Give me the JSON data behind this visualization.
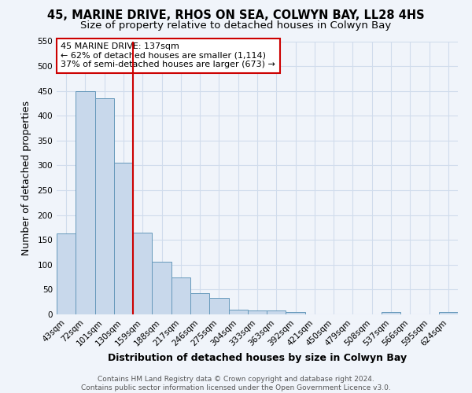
{
  "title": "45, MARINE DRIVE, RHOS ON SEA, COLWYN BAY, LL28 4HS",
  "subtitle": "Size of property relative to detached houses in Colwyn Bay",
  "xlabel": "Distribution of detached houses by size in Colwyn Bay",
  "ylabel": "Number of detached properties",
  "footer_lines": [
    "Contains HM Land Registry data © Crown copyright and database right 2024.",
    "Contains public sector information licensed under the Open Government Licence v3.0."
  ],
  "bar_labels": [
    "43sqm",
    "72sqm",
    "101sqm",
    "130sqm",
    "159sqm",
    "188sqm",
    "217sqm",
    "246sqm",
    "275sqm",
    "304sqm",
    "333sqm",
    "363sqm",
    "392sqm",
    "421sqm",
    "450sqm",
    "479sqm",
    "508sqm",
    "537sqm",
    "566sqm",
    "595sqm",
    "624sqm"
  ],
  "bar_values": [
    163,
    450,
    435,
    305,
    165,
    106,
    74,
    42,
    33,
    10,
    8,
    8,
    5,
    0,
    0,
    0,
    0,
    5,
    0,
    0,
    5
  ],
  "bar_color": "#c8d8eb",
  "bar_edgecolor": "#6699bb",
  "red_line_x": 3.5,
  "red_line_color": "#cc0000",
  "annotation_box_text": "45 MARINE DRIVE: 137sqm\n← 62% of detached houses are smaller (1,114)\n37% of semi-detached houses are larger (673) →",
  "annotation_box_color": "#cc0000",
  "annotation_box_facecolor": "white",
  "ylim": [
    0,
    550
  ],
  "yticks": [
    0,
    50,
    100,
    150,
    200,
    250,
    300,
    350,
    400,
    450,
    500,
    550
  ],
  "background_color": "#f0f4fa",
  "grid_color": "#d0dcec",
  "title_fontsize": 10.5,
  "subtitle_fontsize": 9.5,
  "axis_label_fontsize": 9,
  "tick_fontsize": 7.5,
  "annotation_fontsize": 8,
  "footer_fontsize": 6.5
}
